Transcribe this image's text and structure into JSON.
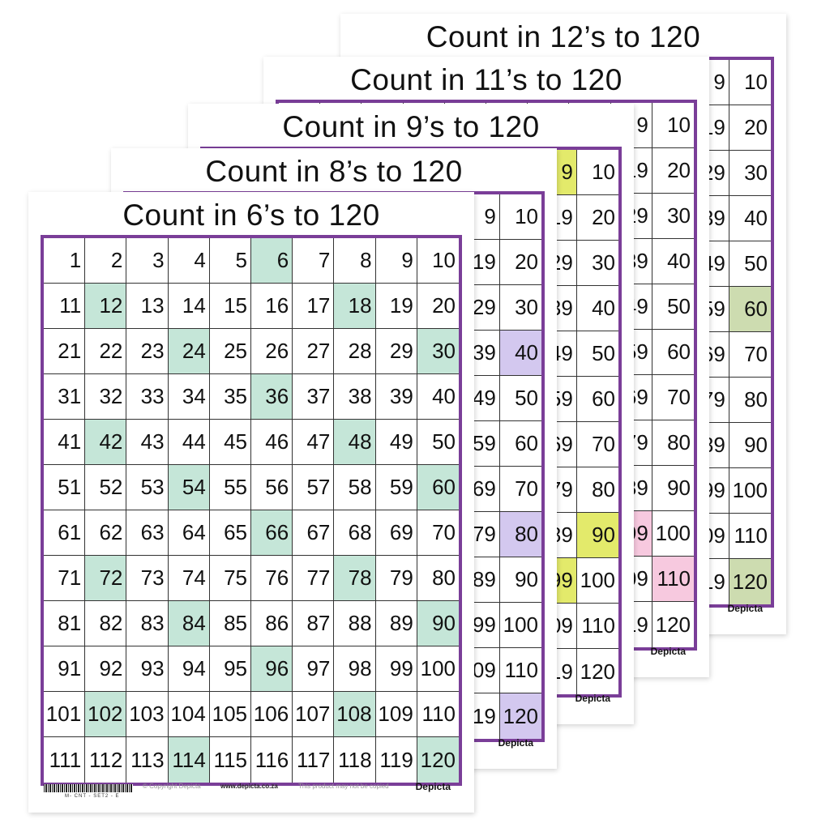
{
  "posters": [
    {
      "title": "Count in 12’s to 120",
      "step": 12,
      "highlight": "#cddcb0"
    },
    {
      "title": "Count in 11’s to 120",
      "step": 11,
      "highlight": "#f7c9df"
    },
    {
      "title": "Count in 9’s to 120",
      "step": 9,
      "highlight": "#e3ea6b"
    },
    {
      "title": "Count in 8’s to 120",
      "step": 8,
      "highlight": "#d3c8ef"
    },
    {
      "title": "Count in 6’s to 120",
      "step": 6,
      "highlight": "#c5e6d8"
    }
  ],
  "numbers": [
    1,
    2,
    3,
    4,
    5,
    6,
    7,
    8,
    9,
    10,
    11,
    12,
    13,
    14,
    15,
    16,
    17,
    18,
    19,
    20,
    21,
    22,
    23,
    24,
    25,
    26,
    27,
    28,
    29,
    30,
    31,
    32,
    33,
    34,
    35,
    36,
    37,
    38,
    39,
    40,
    41,
    42,
    43,
    44,
    45,
    46,
    47,
    48,
    49,
    50,
    51,
    52,
    53,
    54,
    55,
    56,
    57,
    58,
    59,
    60,
    61,
    62,
    63,
    64,
    65,
    66,
    67,
    68,
    69,
    70,
    71,
    72,
    73,
    74,
    75,
    76,
    77,
    78,
    79,
    80,
    81,
    82,
    83,
    84,
    85,
    86,
    87,
    88,
    89,
    90,
    91,
    92,
    93,
    94,
    95,
    96,
    97,
    98,
    99,
    100,
    101,
    102,
    103,
    104,
    105,
    106,
    107,
    108,
    109,
    110,
    111,
    112,
    113,
    114,
    115,
    116,
    117,
    118,
    119,
    120
  ],
  "footer": {
    "product_code": "M- CNT - SET2 - E",
    "copyright": "© Copyright Depicta",
    "url": "www.depicta.co.za",
    "note": "This product may not be copied",
    "brand": "Depicta"
  },
  "border_color": "#7a3e98"
}
